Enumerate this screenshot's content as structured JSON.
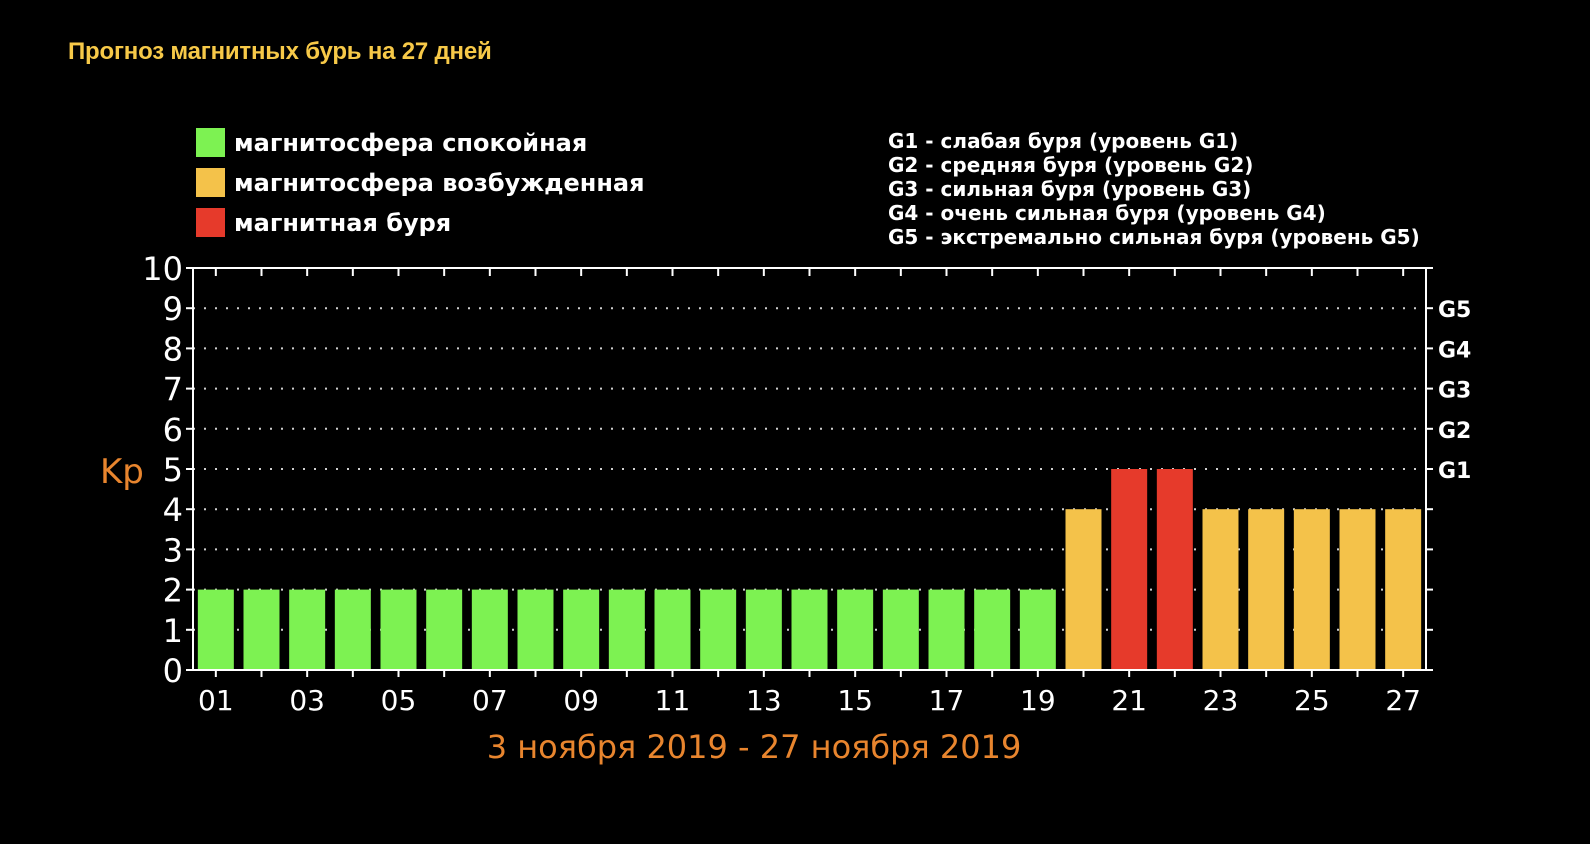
{
  "header": {
    "title": "Прогноз магнитных бурь на 27 дней"
  },
  "colors": {
    "quiet": "#7df252",
    "active": "#f4c24a",
    "storm": "#e63a2b",
    "axis": "#ffffff",
    "accent": "#e8852e",
    "title": "#f7c948"
  },
  "chart_data": {
    "type": "bar",
    "title": "",
    "ylabel": "Kp",
    "xlabel": "3 ноября 2019 - 27 ноября 2019",
    "ylim": [
      0,
      10
    ],
    "yticks": [
      0,
      1,
      2,
      3,
      4,
      5,
      6,
      7,
      8,
      9,
      10
    ],
    "grid": true,
    "categories": [
      "01",
      "02",
      "03",
      "04",
      "05",
      "06",
      "07",
      "08",
      "09",
      "10",
      "11",
      "12",
      "13",
      "14",
      "15",
      "16",
      "17",
      "18",
      "19",
      "20",
      "21",
      "22",
      "23",
      "24",
      "25",
      "26",
      "27"
    ],
    "xtick_labels": [
      "01",
      "03",
      "05",
      "07",
      "09",
      "11",
      "13",
      "15",
      "17",
      "19",
      "21",
      "23",
      "25",
      "27"
    ],
    "values": [
      2,
      2,
      2,
      2,
      2,
      2,
      2,
      2,
      2,
      2,
      2,
      2,
      2,
      2,
      2,
      2,
      2,
      2,
      2,
      4,
      5,
      5,
      4,
      4,
      4,
      4,
      4
    ],
    "levels": [
      "quiet",
      "quiet",
      "quiet",
      "quiet",
      "quiet",
      "quiet",
      "quiet",
      "quiet",
      "quiet",
      "quiet",
      "quiet",
      "quiet",
      "quiet",
      "quiet",
      "quiet",
      "quiet",
      "quiet",
      "quiet",
      "quiet",
      "active",
      "storm",
      "storm",
      "active",
      "active",
      "active",
      "active",
      "active"
    ],
    "right_axis": [
      {
        "label": "G1",
        "value": 5
      },
      {
        "label": "G2",
        "value": 6
      },
      {
        "label": "G3",
        "value": 7
      },
      {
        "label": "G4",
        "value": 8
      },
      {
        "label": "G5",
        "value": 9
      }
    ],
    "legend": [
      {
        "key": "quiet",
        "label": "магнитосфера спокойная"
      },
      {
        "key": "active",
        "label": "магнитосфера возбужденная"
      },
      {
        "key": "storm",
        "label": "магнитная буря"
      }
    ],
    "g_legend": [
      "G1 - слабая буря (уровень G1)",
      "G2 - средняя буря (уровень G2)",
      "G3 - сильная буря (уровень G3)",
      "G4 - очень сильная буря (уровень G4)",
      "G5 - экстремально сильная буря (уровень G5)"
    ]
  }
}
